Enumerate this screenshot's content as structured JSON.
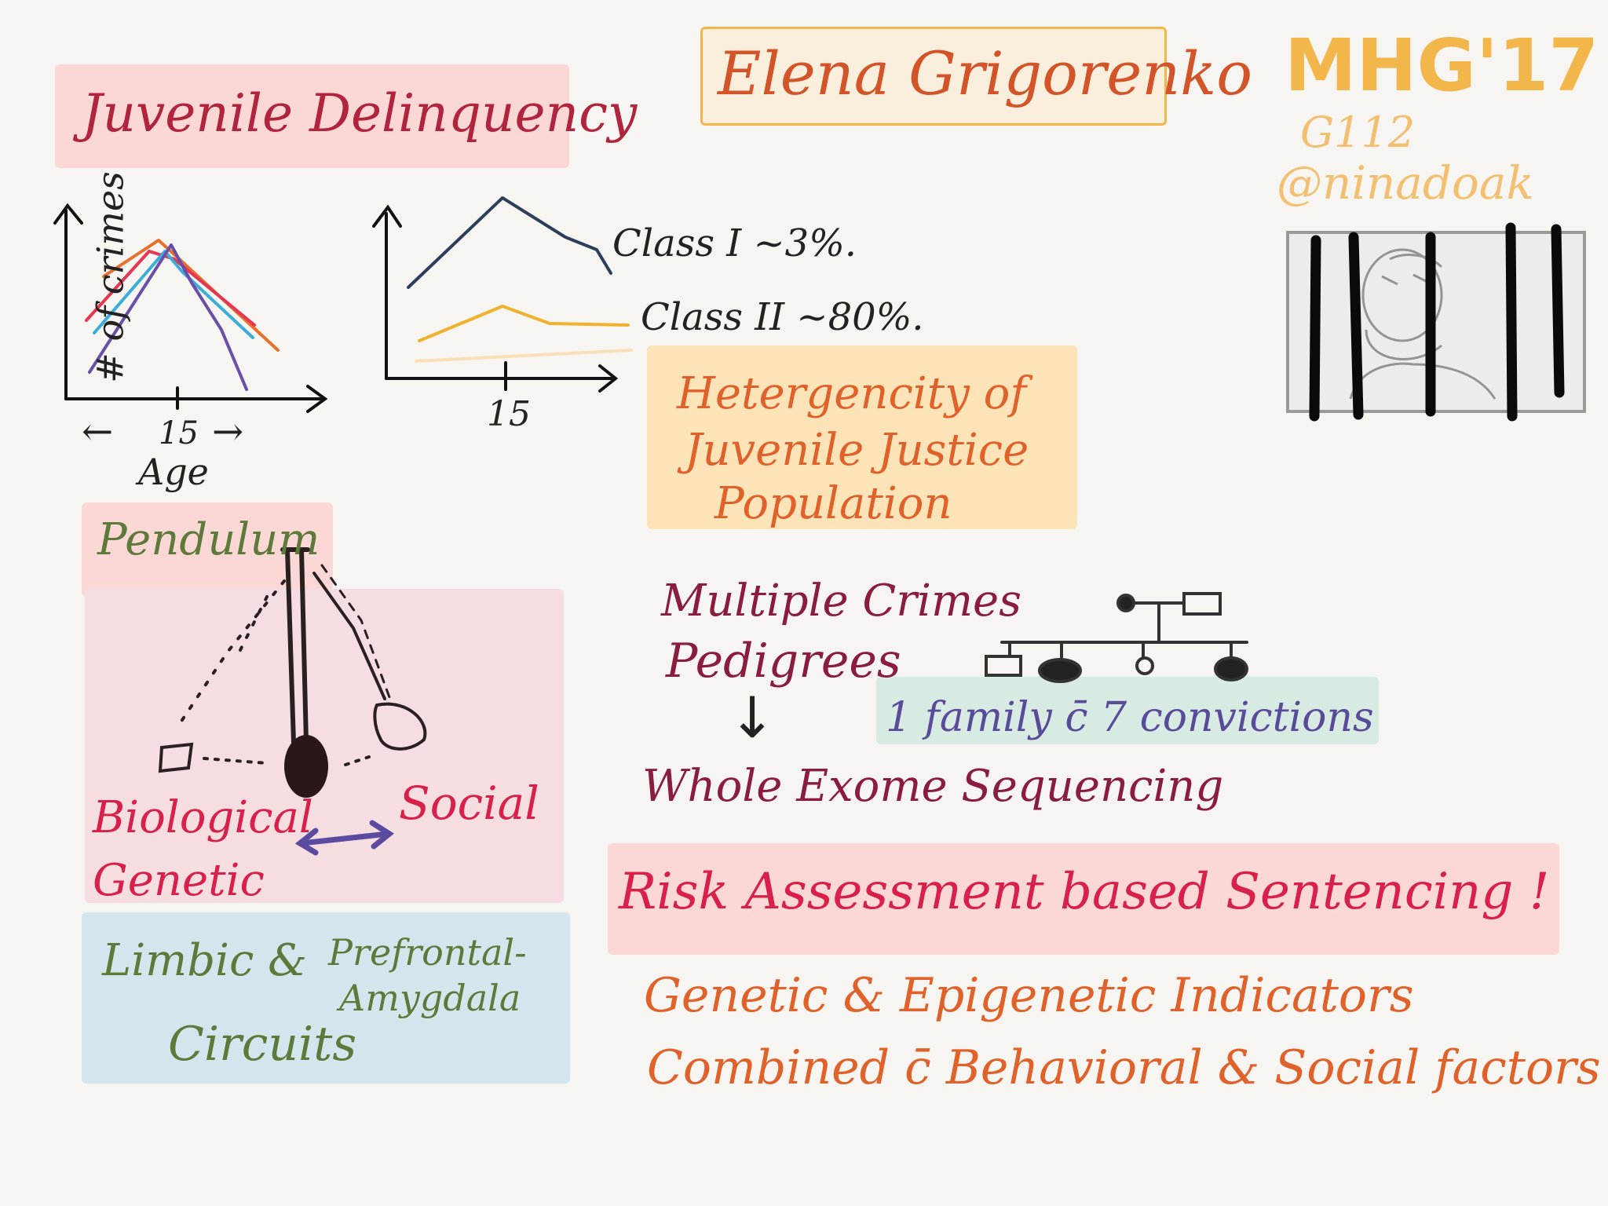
{
  "title": {
    "text": "Juvenile Delinquency"
  },
  "speaker": {
    "name": "Elena Grigorenko"
  },
  "event": {
    "name": "MHG'17",
    "room": "G112",
    "author": "@ninadoak"
  },
  "age_chart": {
    "ylabel": "# of crimes",
    "tick": "15",
    "xlabel": "Age",
    "arrow_left": "←",
    "arrow_right": "→"
  },
  "class_chart": {
    "tick": "15",
    "class1": "Class I ~3%.",
    "class2": "Class II ~80%."
  },
  "heterogeneity": {
    "line1": "Hetergencity of",
    "line2": "Juvenile Justice",
    "line3": "Population"
  },
  "pendulum": {
    "title": "Pendulum",
    "biological": "Biological",
    "genetic": "Genetic",
    "social": "Social"
  },
  "circuits": {
    "line1a": "Limbic &",
    "line1b": "Prefrontal-",
    "line2": "Amygdala",
    "line3": "Circuits"
  },
  "pedigrees": {
    "line1": "Multiple Crimes",
    "line2": "Pedigrees",
    "down_arrow": "↓",
    "result": "Whole Exome Sequencing",
    "family": "1 family c̄ 7 convictions"
  },
  "risk": {
    "title": "Risk Assessment based Sentencing !",
    "line1": "Genetic & Epigenetic Indicators",
    "line2": "Combined c̄ Behavioral & Social factors"
  },
  "colors": {
    "title_ink": "#b0243e",
    "speaker_ink": "#d4542a",
    "event_ink": "#f2b64b",
    "green_ink": "#5e7a3a",
    "pink_ink": "#d8204a",
    "maroon_ink": "#8a1c3c",
    "orange_ink": "#e0622a",
    "navy_ink": "#2c3e5a",
    "purple_ink": "#5a4a9a"
  }
}
